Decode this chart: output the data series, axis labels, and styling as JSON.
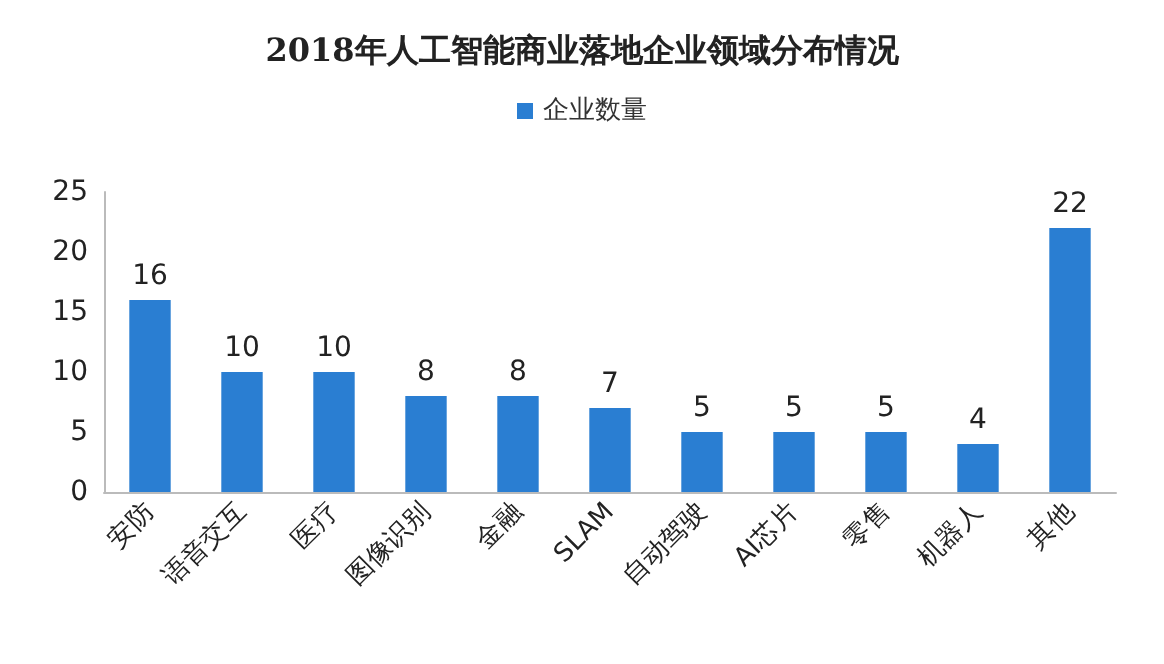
{
  "chart_data": {
    "type": "bar",
    "title": "2018年人工智能商业落地企业领域分布情况",
    "categories": [
      "安防",
      "语音交互",
      "医疗",
      "图像识别",
      "金融",
      "SLAM",
      "自动驾驶",
      "AI芯片",
      "零售",
      "机器人",
      "其他"
    ],
    "series": [
      {
        "name": "企业数量",
        "color": "#2a7ed2",
        "values": [
          16,
          10,
          10,
          8,
          8,
          7,
          5,
          5,
          5,
          4,
          22
        ]
      }
    ],
    "ylim": [
      0,
      25
    ],
    "yticks": [
      0,
      5,
      10,
      15,
      20,
      25
    ],
    "grid": false,
    "legend": "top",
    "data_labels": true
  }
}
